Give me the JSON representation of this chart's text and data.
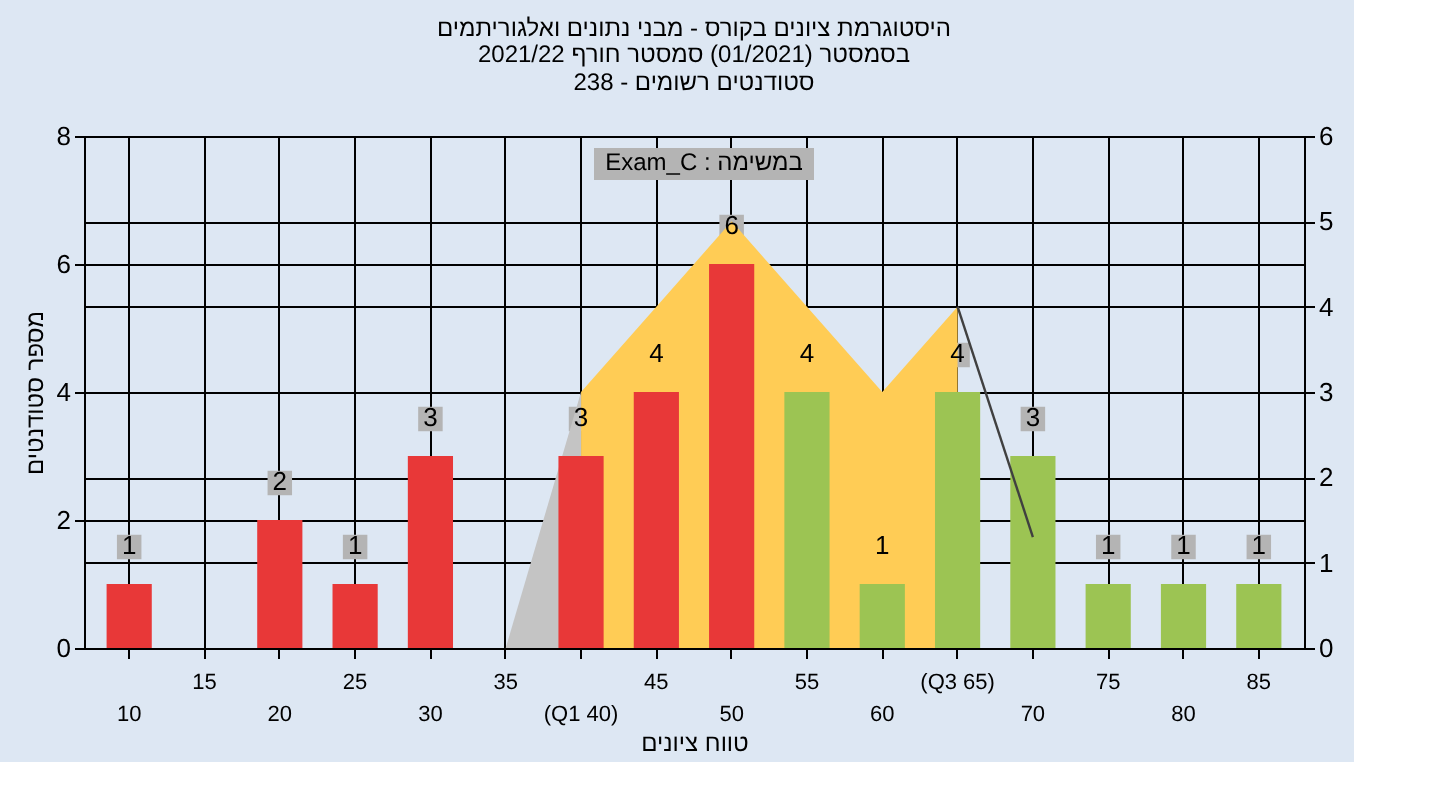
{
  "chart_data": {
    "type": "bar",
    "title": "היסטוגרמת ציונים בקורס - מבני נתונים ואלגוריתמים",
    "subtitle": "בסמסטר  (01/2021)  סמסטר חורף 2021/22\nסטודנטים רשומים - 238",
    "xlabel": "טווח ציונים",
    "ylabel": "מספר סטודנטים",
    "annotations": [
      "Exam_C : במשימה"
    ],
    "categories": [
      "10",
      "15",
      "20",
      "25",
      "30",
      "35",
      "(Q1 40)",
      "45",
      "50",
      "55",
      "60",
      "(Q3 65)",
      "70",
      "75",
      "80",
      "85"
    ],
    "series": [
      {
        "type": "area",
        "axis": "y2",
        "color": "#ffcc55",
        "x": [
          "(Q1 40)",
          "45",
          "50",
          "55",
          "60",
          "(Q3 65)"
        ],
        "values": [
          3,
          4,
          5,
          4,
          3,
          4
        ]
      },
      {
        "type": "area",
        "axis": "y2",
        "color": "#c4c4c4",
        "x": [
          "35",
          "(Q1 40)"
        ],
        "values": [
          0,
          3
        ]
      },
      {
        "type": "line",
        "axis": "y2",
        "color": "#404040",
        "x": [
          "(Q3 65)",
          "70"
        ],
        "values": [
          4,
          1.3
        ]
      },
      {
        "colors": [
          "#e83838",
          "#e83838",
          "#e83838",
          "#e83838",
          "#e83838",
          "#e83838",
          "#e83838",
          "#e83838",
          "#e83838",
          "#9cc453",
          "#9cc453",
          "#9cc453",
          "#9cc453",
          "#9cc453",
          "#9cc453",
          "#9cc453"
        ],
        "values": [
          1,
          0,
          2,
          1,
          3,
          0,
          3,
          4,
          6,
          4,
          1,
          4,
          3,
          1,
          1,
          1
        ],
        "value_labels": [
          "1",
          null,
          "2",
          "1",
          "3",
          null,
          "3",
          "4",
          "6",
          "4",
          "1",
          "4",
          "3",
          "1",
          "1",
          "1"
        ]
      }
    ],
    "ylim": [
      0,
      8
    ],
    "yticks": [
      0,
      2,
      4,
      6,
      8
    ],
    "y2lim": [
      0,
      6
    ],
    "y2ticks": [
      0,
      1,
      2,
      3,
      4,
      5,
      6
    ],
    "grid": true
  }
}
